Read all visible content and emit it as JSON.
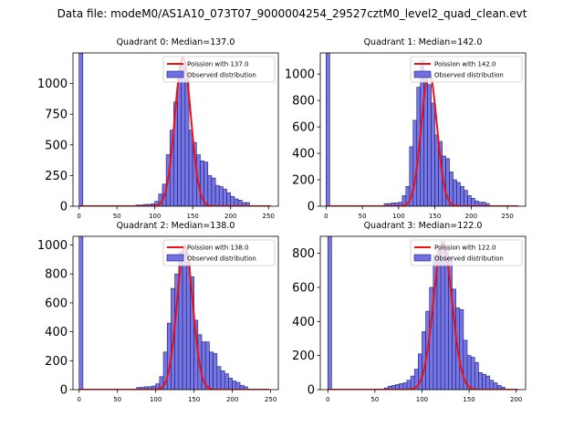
{
  "figure": {
    "title": "Data file: modeM0/AS1A10_073T07_9000004254_29527cztM0_level2_quad_clean.evt"
  },
  "colors": {
    "bar_fill": "#7070e0",
    "bar_edge": "#1a1a80",
    "poisson": "#ee1111"
  },
  "chart_data": [
    {
      "type": "bar",
      "title": "Quadrant 0: Median=137.0",
      "legend": [
        "Poission with 137.0",
        "Observed distribution"
      ],
      "legend_position": "top-right",
      "median": 137.0,
      "xlim": [
        -8,
        263
      ],
      "ylim": [
        0,
        1250
      ],
      "xticks": [
        0,
        50,
        100,
        150,
        200,
        250
      ],
      "yticks": [
        0,
        250,
        500,
        750,
        1000
      ],
      "bin_width": 5,
      "bins": [
        [
          0,
          1250
        ],
        [
          75,
          10
        ],
        [
          80,
          10
        ],
        [
          85,
          15
        ],
        [
          90,
          15
        ],
        [
          95,
          20
        ],
        [
          100,
          40
        ],
        [
          105,
          100
        ],
        [
          110,
          180
        ],
        [
          115,
          420
        ],
        [
          120,
          620
        ],
        [
          125,
          850
        ],
        [
          130,
          1080
        ],
        [
          135,
          1150
        ],
        [
          140,
          1030
        ],
        [
          145,
          620
        ],
        [
          150,
          520
        ],
        [
          155,
          420
        ],
        [
          160,
          370
        ],
        [
          165,
          360
        ],
        [
          170,
          250
        ],
        [
          175,
          230
        ],
        [
          180,
          170
        ],
        [
          185,
          160
        ],
        [
          190,
          140
        ],
        [
          195,
          110
        ],
        [
          200,
          80
        ],
        [
          205,
          60
        ],
        [
          210,
          50
        ],
        [
          215,
          30
        ],
        [
          220,
          30
        ]
      ],
      "curve": {
        "mean": 137,
        "peak": 1210,
        "sigma": 10.6,
        "x_start": 0,
        "x_end": 253
      }
    },
    {
      "type": "bar",
      "title": "Quadrant 1: Median=142.0",
      "legend": [
        "Poission with 142.0",
        "Observed distribution"
      ],
      "legend_position": "top-right",
      "median": 142.0,
      "xlim": [
        -8,
        275
      ],
      "ylim": [
        0,
        1160
      ],
      "xticks": [
        0,
        50,
        100,
        150,
        200,
        250
      ],
      "yticks": [
        0,
        200,
        400,
        600,
        800,
        1000
      ],
      "bin_width": 5,
      "bins": [
        [
          0,
          1160
        ],
        [
          80,
          20
        ],
        [
          85,
          20
        ],
        [
          90,
          25
        ],
        [
          95,
          25
        ],
        [
          100,
          30
        ],
        [
          105,
          80
        ],
        [
          110,
          150
        ],
        [
          115,
          450
        ],
        [
          120,
          650
        ],
        [
          125,
          900
        ],
        [
          130,
          1100
        ],
        [
          135,
          960
        ],
        [
          140,
          920
        ],
        [
          145,
          780
        ],
        [
          150,
          540
        ],
        [
          155,
          490
        ],
        [
          160,
          380
        ],
        [
          165,
          360
        ],
        [
          170,
          260
        ],
        [
          175,
          200
        ],
        [
          180,
          180
        ],
        [
          185,
          150
        ],
        [
          190,
          120
        ],
        [
          195,
          80
        ],
        [
          200,
          60
        ],
        [
          205,
          40
        ],
        [
          210,
          30
        ],
        [
          215,
          30
        ],
        [
          220,
          20
        ]
      ],
      "curve": {
        "mean": 142,
        "peak": 1010,
        "sigma": 10.8,
        "x_start": 0,
        "x_end": 265
      }
    },
    {
      "type": "bar",
      "title": "Quadrant 2: Median=138.0",
      "legend": [
        "Poission with 138.0",
        "Observed distribution"
      ],
      "legend_position": "top-right",
      "median": 138.0,
      "xlim": [
        -8,
        260
      ],
      "ylim": [
        0,
        1060
      ],
      "xticks": [
        0,
        50,
        100,
        150,
        200,
        250
      ],
      "yticks": [
        0,
        200,
        400,
        600,
        800,
        1000
      ],
      "bin_width": 5,
      "bins": [
        [
          0,
          1060
        ],
        [
          75,
          15
        ],
        [
          80,
          15
        ],
        [
          85,
          20
        ],
        [
          90,
          20
        ],
        [
          95,
          25
        ],
        [
          100,
          40
        ],
        [
          105,
          90
        ],
        [
          110,
          260
        ],
        [
          115,
          460
        ],
        [
          120,
          700
        ],
        [
          125,
          800
        ],
        [
          130,
          950
        ],
        [
          135,
          1000
        ],
        [
          140,
          880
        ],
        [
          145,
          780
        ],
        [
          150,
          480
        ],
        [
          155,
          380
        ],
        [
          160,
          330
        ],
        [
          165,
          330
        ],
        [
          170,
          260
        ],
        [
          175,
          250
        ],
        [
          180,
          160
        ],
        [
          185,
          130
        ],
        [
          190,
          110
        ],
        [
          195,
          80
        ],
        [
          200,
          60
        ],
        [
          205,
          50
        ],
        [
          210,
          30
        ],
        [
          215,
          20
        ]
      ],
      "curve": {
        "mean": 138,
        "peak": 990,
        "sigma": 10.4,
        "x_start": 0,
        "x_end": 248
      }
    },
    {
      "type": "bar",
      "title": "Quadrant 3: Median=122.0",
      "legend": [
        "Poission with 122.0",
        "Observed distribution"
      ],
      "legend_position": "top-right",
      "median": 122.0,
      "xlim": [
        -8,
        210
      ],
      "ylim": [
        0,
        900
      ],
      "xticks": [
        0,
        50,
        100,
        150,
        200
      ],
      "yticks": [
        0,
        200,
        400,
        600,
        800
      ],
      "bin_width": 4,
      "bins": [
        [
          0,
          900
        ],
        [
          60,
          10
        ],
        [
          64,
          20
        ],
        [
          68,
          25
        ],
        [
          72,
          30
        ],
        [
          76,
          35
        ],
        [
          80,
          40
        ],
        [
          84,
          55
        ],
        [
          88,
          80
        ],
        [
          92,
          120
        ],
        [
          96,
          210
        ],
        [
          100,
          340
        ],
        [
          104,
          460
        ],
        [
          108,
          600
        ],
        [
          112,
          790
        ],
        [
          116,
          820
        ],
        [
          120,
          870
        ],
        [
          124,
          820
        ],
        [
          128,
          780
        ],
        [
          132,
          590
        ],
        [
          136,
          480
        ],
        [
          140,
          470
        ],
        [
          144,
          290
        ],
        [
          148,
          200
        ],
        [
          152,
          190
        ],
        [
          156,
          160
        ],
        [
          160,
          100
        ],
        [
          164,
          90
        ],
        [
          168,
          80
        ],
        [
          172,
          55
        ],
        [
          176,
          40
        ],
        [
          180,
          25
        ],
        [
          184,
          15
        ]
      ],
      "curve": {
        "mean": 122,
        "peak": 850,
        "sigma": 10.0,
        "x_start": 0,
        "x_end": 202
      }
    }
  ]
}
